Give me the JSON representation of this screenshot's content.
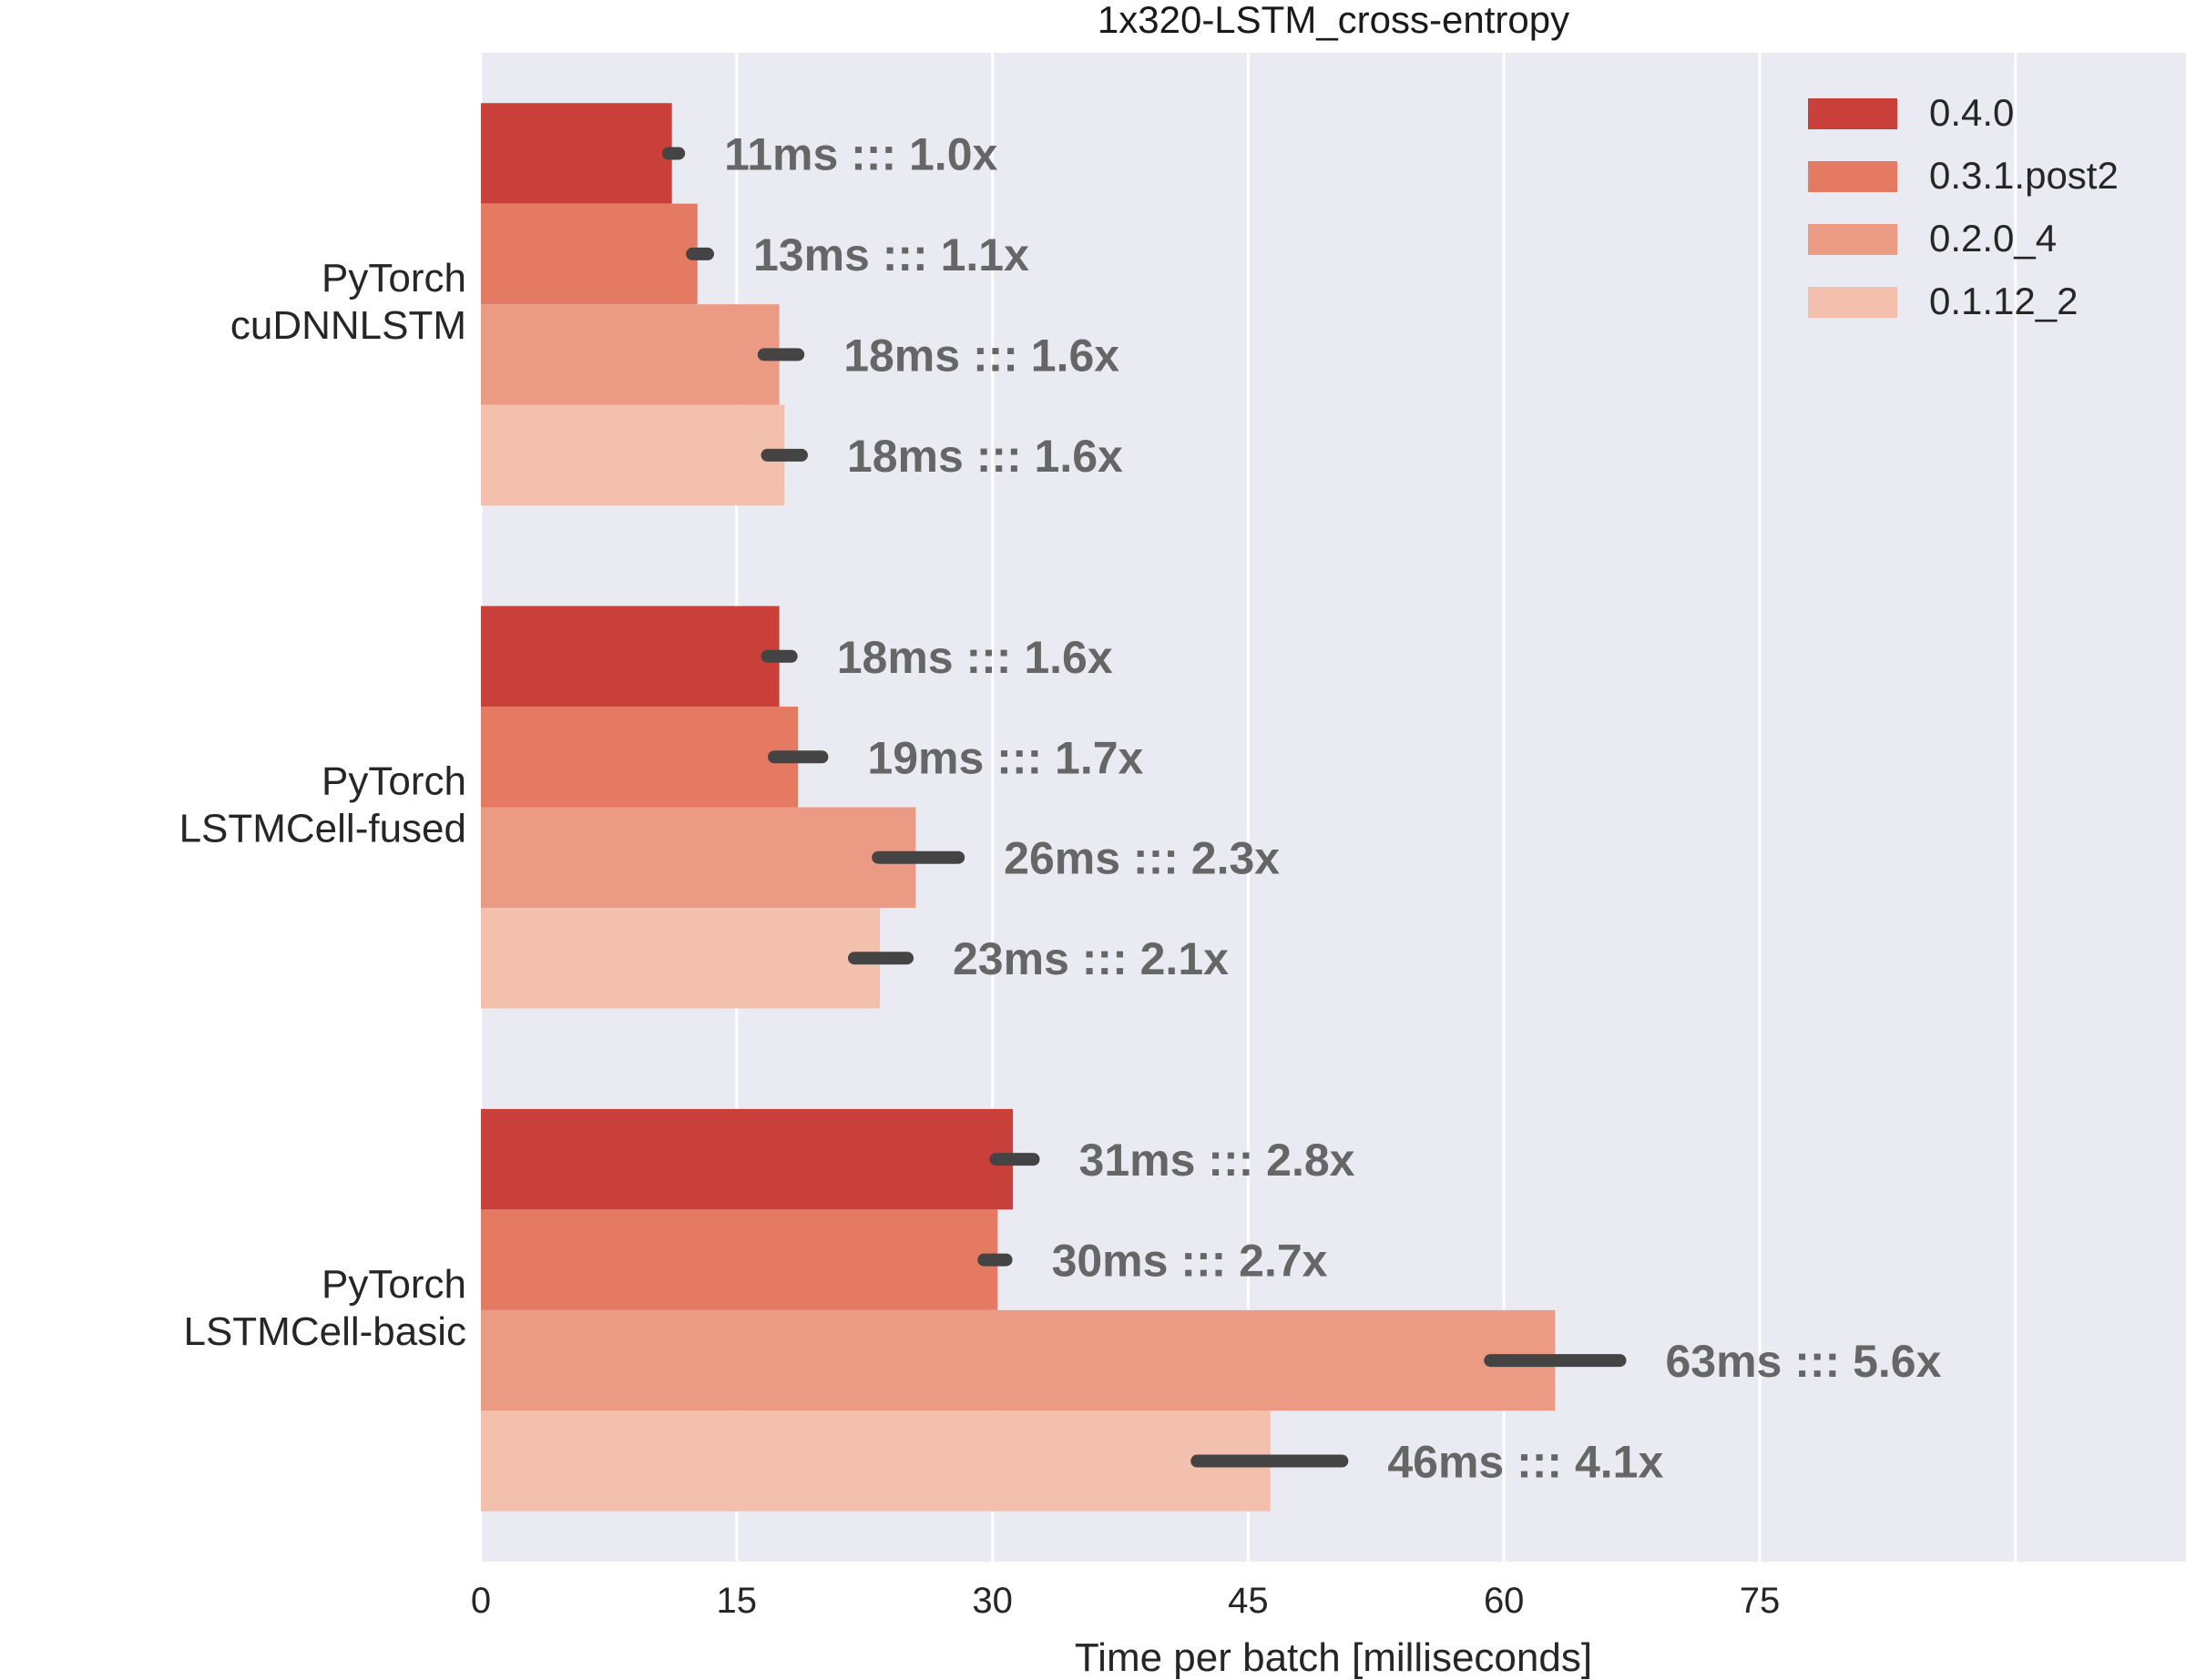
{
  "chart_data": {
    "type": "bar",
    "orientation": "horizontal",
    "title": "1x320-LSTM_cross-entropy",
    "xlabel": "Time per batch [milliseconds]",
    "ylabel": "",
    "xlim": [
      0,
      100
    ],
    "xticks": [
      0,
      15,
      30,
      45,
      60,
      75
    ],
    "grid": true,
    "legend_position": "top-right",
    "categories": [
      [
        "PyTorch",
        "cuDNNLSTM"
      ],
      [
        "PyTorch",
        "LSTMCell-fused"
      ],
      [
        "PyTorch",
        "LSTMCell-basic"
      ]
    ],
    "series": [
      {
        "name": "0.4.0",
        "color": "#c9403a",
        "values": [
          11.2,
          17.5,
          31.2
        ],
        "errors": [
          [
            11.0,
            11.6
          ],
          [
            16.8,
            18.2
          ],
          [
            30.2,
            32.4
          ]
        ],
        "labels": [
          "11ms ::: 1.0x",
          "18ms ::: 1.6x",
          "31ms ::: 2.8x"
        ]
      },
      {
        "name": "0.3.1.post2",
        "color": "#e57a63",
        "values": [
          12.7,
          18.6,
          30.3
        ],
        "errors": [
          [
            12.4,
            13.3
          ],
          [
            17.2,
            20.0
          ],
          [
            29.5,
            30.8
          ]
        ],
        "labels": [
          "13ms ::: 1.1x",
          "19ms ::: 1.7x",
          "30ms ::: 2.7x"
        ]
      },
      {
        "name": "0.2.0_4",
        "color": "#eb9b84",
        "values": [
          17.5,
          25.5,
          63.0
        ],
        "errors": [
          [
            16.6,
            18.6
          ],
          [
            23.3,
            28.0
          ],
          [
            59.2,
            66.8
          ]
        ],
        "labels": [
          "18ms ::: 1.6x",
          "26ms ::: 2.3x",
          "63ms ::: 5.6x"
        ]
      },
      {
        "name": "0.1.12_2",
        "color": "#f2c0ac",
        "values": [
          17.8,
          23.4,
          46.3
        ],
        "errors": [
          [
            16.8,
            18.8
          ],
          [
            21.9,
            25.0
          ],
          [
            42.0,
            50.5
          ]
        ],
        "labels": [
          "18ms ::: 1.6x",
          "23ms ::: 2.1x",
          "46ms ::: 4.1x"
        ]
      }
    ]
  }
}
